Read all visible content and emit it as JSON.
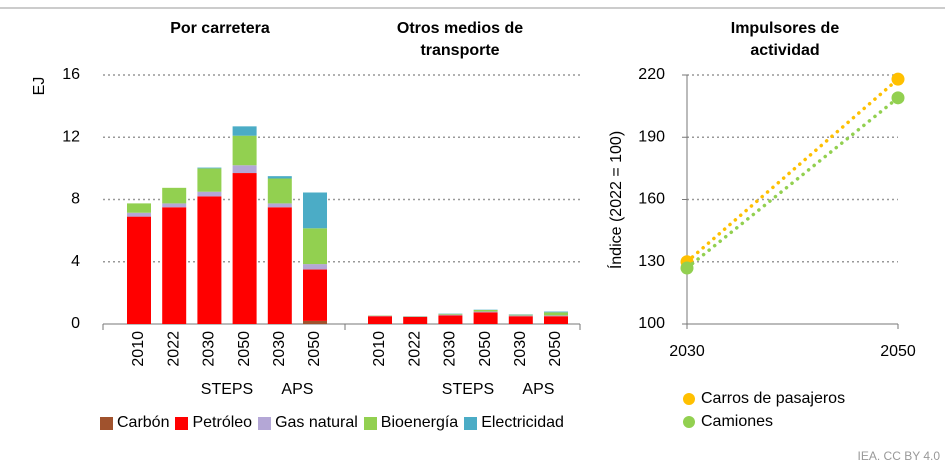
{
  "chart_data": [
    {
      "type": "bar",
      "stacked": true,
      "ylabel": "EJ",
      "panels": [
        {
          "title": "Por carretera",
          "start": 0
        },
        {
          "title": "Otros medios de transporte",
          "start": 6
        }
      ],
      "categories": [
        "2010",
        "2022",
        "2030",
        "2050",
        "2030",
        "2050",
        "2010",
        "2022",
        "2030",
        "2050",
        "2030",
        "2050"
      ],
      "scenarios": [
        "STEPS",
        "APS",
        "STEPS",
        "APS"
      ],
      "ylim": [
        0,
        16
      ],
      "yticks": [
        0,
        4,
        8,
        12,
        16
      ],
      "grid": true,
      "series": [
        {
          "name": "Carbón",
          "color": "#a0522d",
          "values": [
            0,
            0,
            0,
            0,
            0,
            0.2,
            0,
            0,
            0,
            0,
            0,
            0
          ]
        },
        {
          "name": "Petróleo",
          "color": "#ff0000",
          "values": [
            6.9,
            7.5,
            8.2,
            9.7,
            7.5,
            3.3,
            0.5,
            0.45,
            0.55,
            0.75,
            0.5,
            0.5
          ]
        },
        {
          "name": "Gas natural",
          "color": "#b4a7d6",
          "values": [
            0.25,
            0.25,
            0.3,
            0.5,
            0.25,
            0.35,
            0.03,
            0.03,
            0.05,
            0.05,
            0.05,
            0.05
          ]
        },
        {
          "name": "Bioenergía",
          "color": "#92d050",
          "values": [
            0.6,
            1.0,
            1.5,
            1.9,
            1.6,
            2.3,
            0.02,
            0.02,
            0.05,
            0.1,
            0.05,
            0.2
          ]
        },
        {
          "name": "Electricidad",
          "color": "#4bacc6",
          "values": [
            0,
            0,
            0.05,
            0.6,
            0.15,
            2.3,
            0,
            0,
            0.02,
            0.02,
            0.02,
            0.05
          ]
        }
      ]
    },
    {
      "type": "line",
      "title": "Impulsores de actividad",
      "ylabel": "Índice (2022 = 100)",
      "x": [
        2030,
        2050
      ],
      "xlim": [
        2030,
        2050
      ],
      "xticks": [
        2030,
        2050
      ],
      "ylim": [
        100,
        220
      ],
      "yticks": [
        100,
        130,
        160,
        190,
        220
      ],
      "grid": true,
      "series": [
        {
          "name": "Carros de pasajeros",
          "color": "#ffc000",
          "values": [
            130,
            218
          ]
        },
        {
          "name": "Camiones",
          "color": "#92d050",
          "values": [
            127,
            209
          ]
        }
      ]
    }
  ],
  "footer": "IEA. CC BY 4.0"
}
